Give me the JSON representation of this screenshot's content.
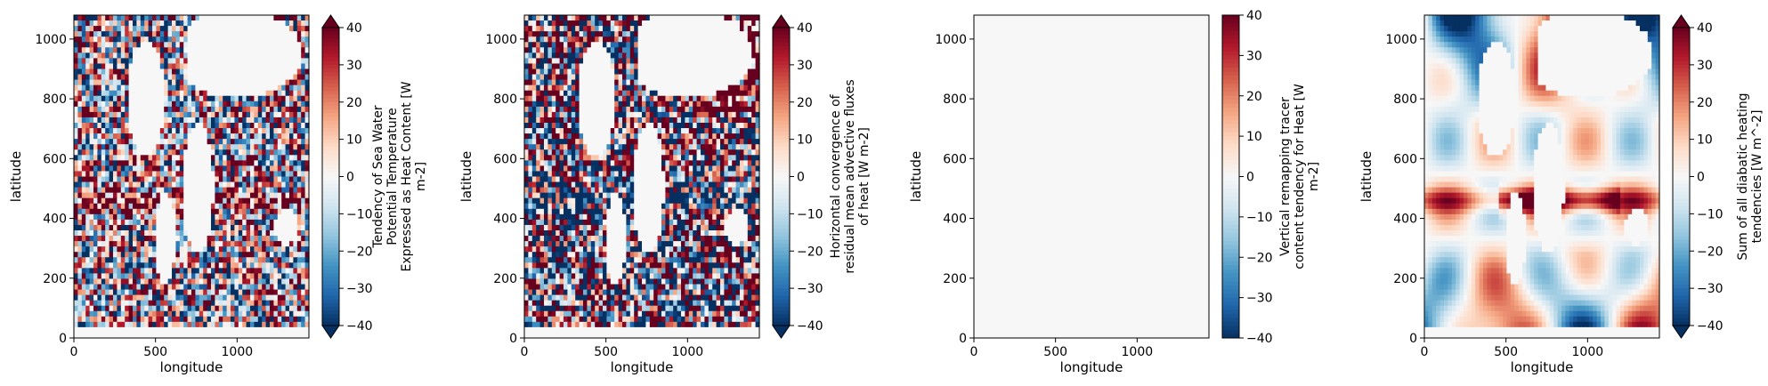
{
  "colors": {
    "land": "#f7f7f7",
    "neutral": "#f7f7f7",
    "strong_red": "#67001f",
    "strong_blue": "#053061",
    "colormap": [
      "#053061",
      "#2166ac",
      "#4393c3",
      "#92c5de",
      "#d1e5f0",
      "#f7f7f7",
      "#fddbc7",
      "#f4a582",
      "#d6604d",
      "#b2182b",
      "#67001f"
    ]
  },
  "chart_data": [
    {
      "type": "heatmap",
      "panel": "panel-1",
      "xlabel": "longitude",
      "ylabel": "latitude",
      "xlim": [
        0,
        1440
      ],
      "ylim": [
        0,
        1080
      ],
      "xticks": [
        0,
        500,
        1000
      ],
      "yticks": [
        0,
        200,
        400,
        600,
        800,
        1000
      ],
      "colorbar": {
        "label": "Tendency of Sea Water Potential Temperature Expressed as Heat Content [W m-2]",
        "label_lines": [
          "Tendency of Sea Water",
          "Potential Temperature",
          "Expressed as Heat Content [W",
          "m-2]"
        ],
        "vmin": -40,
        "vmax": 40,
        "ticks": [
          -40,
          -30,
          -20,
          -10,
          0,
          10,
          20,
          30,
          40
        ],
        "tick_labels": [
          "−40",
          "−30",
          "−20",
          "−10",
          "0",
          "10",
          "20",
          "30",
          "40"
        ],
        "extend": "both",
        "cmap": "RdBu_r"
      },
      "field": "noisy",
      "pattern": "fine-scale mixed positive/negative tendencies over oceans; strong equatorial band near y≈460; land blank"
    },
    {
      "type": "heatmap",
      "panel": "panel-2",
      "xlabel": "longitude",
      "ylabel": "latitude",
      "xlim": [
        0,
        1440
      ],
      "ylim": [
        0,
        1080
      ],
      "xticks": [
        0,
        500,
        1000
      ],
      "yticks": [
        0,
        200,
        400,
        600,
        800,
        1000
      ],
      "colorbar": {
        "label": "Horizontal convergence of residual mean advective fluxes of heat [W m-2]",
        "label_lines": [
          "Horizontal convergence of",
          "residual mean advective fluxes",
          "of heat [W m-2]"
        ],
        "vmin": -40,
        "vmax": 40,
        "ticks": [
          -40,
          -30,
          -20,
          -10,
          0,
          10,
          20,
          30,
          40
        ],
        "tick_labels": [
          "−40",
          "−30",
          "−20",
          "−10",
          "0",
          "10",
          "20",
          "30",
          "40"
        ],
        "extend": "both",
        "cmap": "RdBu_r"
      },
      "field": "noisy-strong",
      "pattern": "saturated fine-scale red/blue over oceans; strong red in North Atlantic; blue equatorial band near y≈460"
    },
    {
      "type": "heatmap",
      "panel": "panel-3",
      "xlabel": "longitude",
      "ylabel": "latitude",
      "xlim": [
        0,
        1440
      ],
      "ylim": [
        0,
        1080
      ],
      "xticks": [
        0,
        500,
        1000
      ],
      "yticks": [
        0,
        200,
        400,
        600,
        800,
        1000
      ],
      "colorbar": {
        "label": "Vertical remapping tracer content tendency for Heat [W m-2]",
        "label_lines": [
          "Vertical remapping tracer",
          "content tendency for Heat [W",
          "m-2]"
        ],
        "vmin": -40,
        "vmax": 40,
        "ticks": [
          -40,
          -30,
          -20,
          -10,
          0,
          10,
          20,
          30,
          40
        ],
        "tick_labels": [
          "−40",
          "−30",
          "−20",
          "−10",
          "0",
          "10",
          "20",
          "30",
          "40"
        ],
        "extend": "neither",
        "cmap": "RdBu_r"
      },
      "field": "zero",
      "pattern": "uniformly ~0 everywhere"
    },
    {
      "type": "heatmap",
      "panel": "panel-4",
      "xlabel": "longitude",
      "ylabel": "latitude",
      "xlim": [
        0,
        1440
      ],
      "ylim": [
        0,
        1080
      ],
      "xticks": [
        0,
        500,
        1000
      ],
      "yticks": [
        0,
        200,
        400,
        600,
        800,
        1000
      ],
      "colorbar": {
        "label": "Sum of all diabatic heating tendencies [W m^-2]",
        "label_lines": [
          "Sum of all diabatic heating",
          "tendencies [W m^-2]"
        ],
        "vmin": -40,
        "vmax": 40,
        "ticks": [
          -40,
          -30,
          -20,
          -10,
          0,
          10,
          20,
          30,
          40
        ],
        "tick_labels": [
          "−40",
          "−30",
          "−20",
          "−10",
          "0",
          "10",
          "20",
          "30",
          "40"
        ],
        "extend": "both",
        "cmap": "RdBu_r"
      },
      "field": "smooth",
      "pattern": "smooth large-scale: red equatorial band (heating), blue in northern high latitudes and subtropical gyres"
    }
  ]
}
